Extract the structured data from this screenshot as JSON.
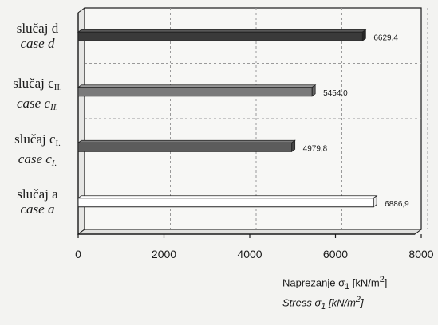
{
  "chart_data": {
    "type": "bar",
    "orientation": "horizontal",
    "categories": [
      {
        "line1": "slučaj d",
        "line2": "case d",
        "value": 6629.4,
        "value_label": "6629,4",
        "fill": "#3a3a3a"
      },
      {
        "line1": "slučaj c",
        "line1_sub": "II.",
        "line2": "case c",
        "line2_sub": "II.",
        "value": 5454.0,
        "value_label": "5454,0",
        "fill": "#7a7a7a"
      },
      {
        "line1": "slučaj c",
        "line1_sub": "I.",
        "line2": "case c",
        "line2_sub": "I.",
        "value": 4979.8,
        "value_label": "4979,8",
        "fill": "#5c5c5c"
      },
      {
        "line1": "slučaj a",
        "line2": "case a",
        "value": 6886.9,
        "value_label": "6886,9",
        "fill": "#ffffff"
      }
    ],
    "xlim": [
      0,
      8000
    ],
    "x_ticks": [
      0,
      2000,
      4000,
      6000,
      8000
    ],
    "xlabel_line1": "Naprezanje σ",
    "xlabel_line1_sub": "1",
    "xlabel_line1_unit": "[kN/m",
    "xlabel_line2": "Stress σ",
    "xlabel_line2_sub": "1",
    "xlabel_line2_unit": "[kN/m",
    "unit_sup": "2",
    "unit_close": "]",
    "grid": "vertical-dashed",
    "colors": {
      "axis": "#1a1a1a",
      "grid": "#9a9a9a",
      "plot_bg": "#f7f7f5"
    }
  }
}
